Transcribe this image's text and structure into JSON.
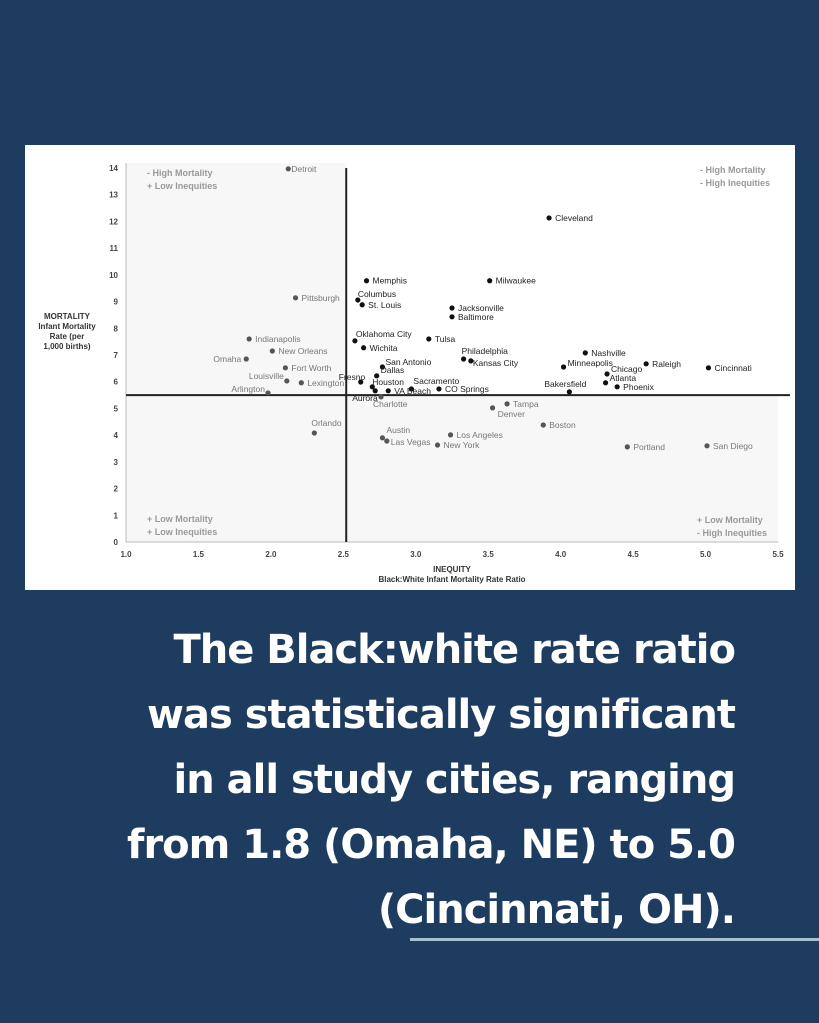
{
  "chart_data": {
    "type": "scatter",
    "xlabel": "INEQUITY",
    "xlabel_sub": "Black:White Infant Mortality Rate Ratio",
    "ylabel_lines": [
      "MORTALITY",
      "Infant Mortality",
      "Rate (per",
      "1,000 births)"
    ],
    "xlim": [
      1.0,
      5.5
    ],
    "ylim": [
      0,
      14
    ],
    "xticks": [
      "1.0",
      "1.5",
      "2.0",
      "2.5",
      "3.0",
      "3.5",
      "4.0",
      "4.5",
      "5.0",
      "5.5"
    ],
    "yticks": [
      "0",
      "1",
      "2",
      "3",
      "4",
      "5",
      "6",
      "7",
      "8",
      "9",
      "10",
      "11",
      "12",
      "13",
      "14"
    ],
    "divider_x": 2.52,
    "divider_y": 5.5,
    "quadrant_labels": {
      "top_left": [
        "-  High Mortality",
        "+ Low Inequities"
      ],
      "top_right": [
        "- High Mortality",
        "- High Inequities"
      ],
      "bottom_left": [
        "+ Low Mortality",
        "+ Low Inequities"
      ],
      "bottom_right": [
        "+ Low Mortality",
        "- High Inequities"
      ]
    },
    "points": [
      {
        "city": "Detroit",
        "x": 2.12,
        "y": 13.97
      },
      {
        "city": "Cleveland",
        "x": 3.92,
        "y": 12.13
      },
      {
        "city": "Memphis",
        "x": 2.66,
        "y": 9.78
      },
      {
        "city": "Milwaukee",
        "x": 3.51,
        "y": 9.78
      },
      {
        "city": "Pittsburgh",
        "x": 2.17,
        "y": 9.14
      },
      {
        "city": "Columbus",
        "x": 2.6,
        "y": 9.06
      },
      {
        "city": "St. Louis",
        "x": 2.63,
        "y": 8.88
      },
      {
        "city": "Jacksonville",
        "x": 3.25,
        "y": 8.76
      },
      {
        "city": "Baltimore",
        "x": 3.25,
        "y": 8.43
      },
      {
        "city": "Oklahoma City",
        "x": 2.58,
        "y": 7.53
      },
      {
        "city": "Tulsa",
        "x": 3.09,
        "y": 7.6
      },
      {
        "city": "Wichita",
        "x": 2.64,
        "y": 7.27
      },
      {
        "city": "Indianapolis",
        "x": 1.85,
        "y": 7.6
      },
      {
        "city": "New Orleans",
        "x": 2.01,
        "y": 7.15
      },
      {
        "city": "Omaha",
        "x": 1.83,
        "y": 6.85
      },
      {
        "city": "Philadelphia",
        "x": 3.33,
        "y": 6.85
      },
      {
        "city": "Kansas City",
        "x": 3.38,
        "y": 6.78
      },
      {
        "city": "Nashville",
        "x": 4.17,
        "y": 7.08
      },
      {
        "city": "Minneapolis",
        "x": 4.02,
        "y": 6.55
      },
      {
        "city": "Raleigh",
        "x": 4.59,
        "y": 6.67
      },
      {
        "city": "Cincinnati",
        "x": 5.02,
        "y": 6.52
      },
      {
        "city": "Chicago",
        "x": 4.32,
        "y": 6.29
      },
      {
        "city": "Atlanta",
        "x": 4.31,
        "y": 5.96
      },
      {
        "city": "Phoenix",
        "x": 4.39,
        "y": 5.81
      },
      {
        "city": "Bakersfield",
        "x": 4.06,
        "y": 5.62
      },
      {
        "city": "Fort Worth",
        "x": 2.1,
        "y": 6.52
      },
      {
        "city": "San Antonio",
        "x": 2.77,
        "y": 6.55
      },
      {
        "city": "Dallas",
        "x": 2.73,
        "y": 6.22
      },
      {
        "city": "Fresno",
        "x": 2.62,
        "y": 5.99
      },
      {
        "city": "Houston",
        "x": 2.7,
        "y": 5.81
      },
      {
        "city": "Louisville",
        "x": 2.11,
        "y": 6.03
      },
      {
        "city": "Lexington",
        "x": 2.21,
        "y": 5.96
      },
      {
        "city": "Arlington",
        "x": 1.98,
        "y": 5.58
      },
      {
        "city": "Sacramento",
        "x": 2.97,
        "y": 5.73
      },
      {
        "city": "CO Springs",
        "x": 3.16,
        "y": 5.73
      },
      {
        "city": "VA Beach",
        "x": 2.81,
        "y": 5.66
      },
      {
        "city": "Aurora",
        "x": 2.72,
        "y": 5.66
      },
      {
        "city": "Charlotte",
        "x": 2.76,
        "y": 5.43
      },
      {
        "city": "Tampa",
        "x": 3.63,
        "y": 5.17
      },
      {
        "city": "Denver",
        "x": 3.53,
        "y": 5.02
      },
      {
        "city": "Boston",
        "x": 3.88,
        "y": 4.38
      },
      {
        "city": "Orlando",
        "x": 2.3,
        "y": 4.08
      },
      {
        "city": "Austin",
        "x": 2.77,
        "y": 3.9
      },
      {
        "city": "Las Vegas",
        "x": 2.8,
        "y": 3.78
      },
      {
        "city": "Los Angeles",
        "x": 3.24,
        "y": 4.01
      },
      {
        "city": "New York",
        "x": 3.15,
        "y": 3.63
      },
      {
        "city": "Portland",
        "x": 4.46,
        "y": 3.56
      },
      {
        "city": "San Diego",
        "x": 5.01,
        "y": 3.6
      }
    ]
  },
  "caption_lines": [
    "The Black:white rate ratio",
    "was statistically significant",
    "in all study cities, ranging",
    "from 1.8 (Omaha, NE) to 5.0",
    "(Cincinnati, OH)."
  ]
}
